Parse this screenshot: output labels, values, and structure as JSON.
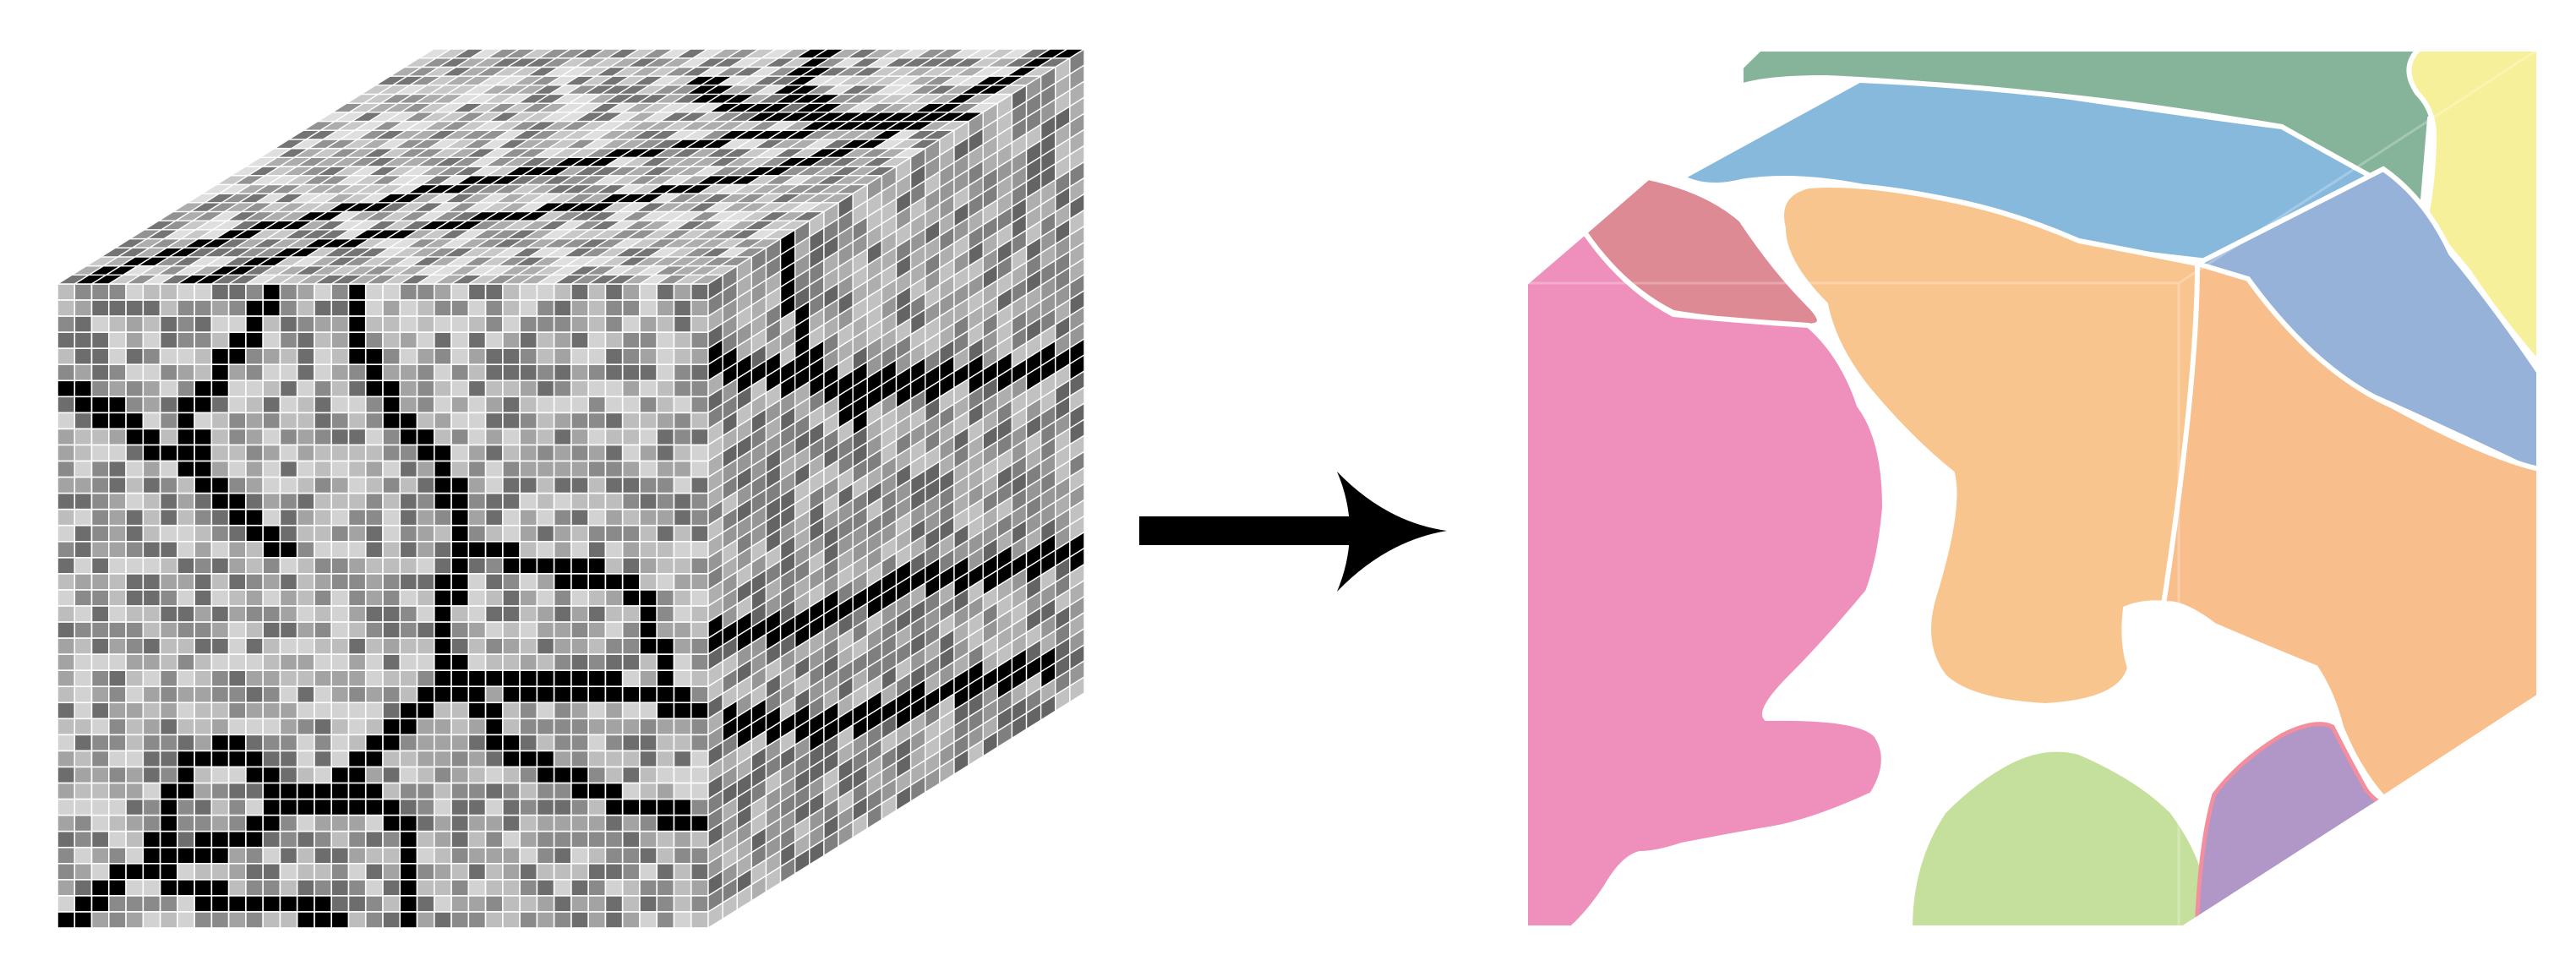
{
  "figure": {
    "voxel_cube": {
      "grid_columns": 38,
      "depth_columns": 26,
      "grid_rows": 40,
      "gray_levels": [
        "#6d6d6d",
        "#8a8a8a",
        "#a3a3a3",
        "#bdbdbd",
        "#d2d2d2"
      ],
      "boundary_color": "#000000",
      "grid_line_color": "#ffffff"
    },
    "arrow": {
      "icon": "right-arrow-icon",
      "color": "#000000"
    },
    "segmentation_cube": {
      "border_color": "#ffffff",
      "regions": [
        {
          "id": "pink",
          "color": "#ee90bb"
        },
        {
          "id": "rose",
          "color": "#de8a94"
        },
        {
          "id": "blue",
          "color": "#86b9dc"
        },
        {
          "id": "green",
          "color": "#86b49a"
        },
        {
          "id": "yellow",
          "color": "#f7f09a"
        },
        {
          "id": "orange",
          "color": "#f9c58e"
        },
        {
          "id": "slate-blue",
          "color": "#96b2d8"
        },
        {
          "id": "salmon",
          "color": "#f8bf8c"
        },
        {
          "id": "lime",
          "color": "#c5e09c"
        },
        {
          "id": "purple",
          "color": "#b196c8"
        }
      ]
    }
  }
}
